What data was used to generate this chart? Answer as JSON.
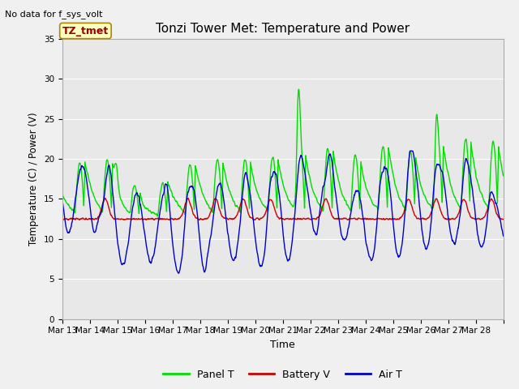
{
  "title": "Tonzi Tower Met: Temperature and Power",
  "top_left_text": "No data for f_sys_volt",
  "xlabel": "Time",
  "ylabel": "Temperature (C) / Power (V)",
  "ylim": [
    0,
    35
  ],
  "yticks": [
    0,
    5,
    10,
    15,
    20,
    25,
    30,
    35
  ],
  "bg_color": "#f0f0f0",
  "plot_bg_color": "#e8e8e8",
  "legend_label_green": "Panel T",
  "legend_label_red": "Battery V",
  "legend_label_blue": "Air T",
  "annotation_text": "TZ_tmet",
  "color_green": "#00dd00",
  "color_red": "#cc0000",
  "color_blue": "#0000cc",
  "line_width": 1.0,
  "x_tick_labels": [
    "Mar 13",
    "Mar 14",
    "Mar 15",
    "Mar 16",
    "Mar 17",
    "Mar 18",
    "Mar 19",
    "Mar 20",
    "Mar 21",
    "Mar 22",
    "Mar 23",
    "Mar 24",
    "Mar 25",
    "Mar 26",
    "Mar 27",
    "Mar 28"
  ],
  "num_days": 16,
  "pts_per_day": 96
}
